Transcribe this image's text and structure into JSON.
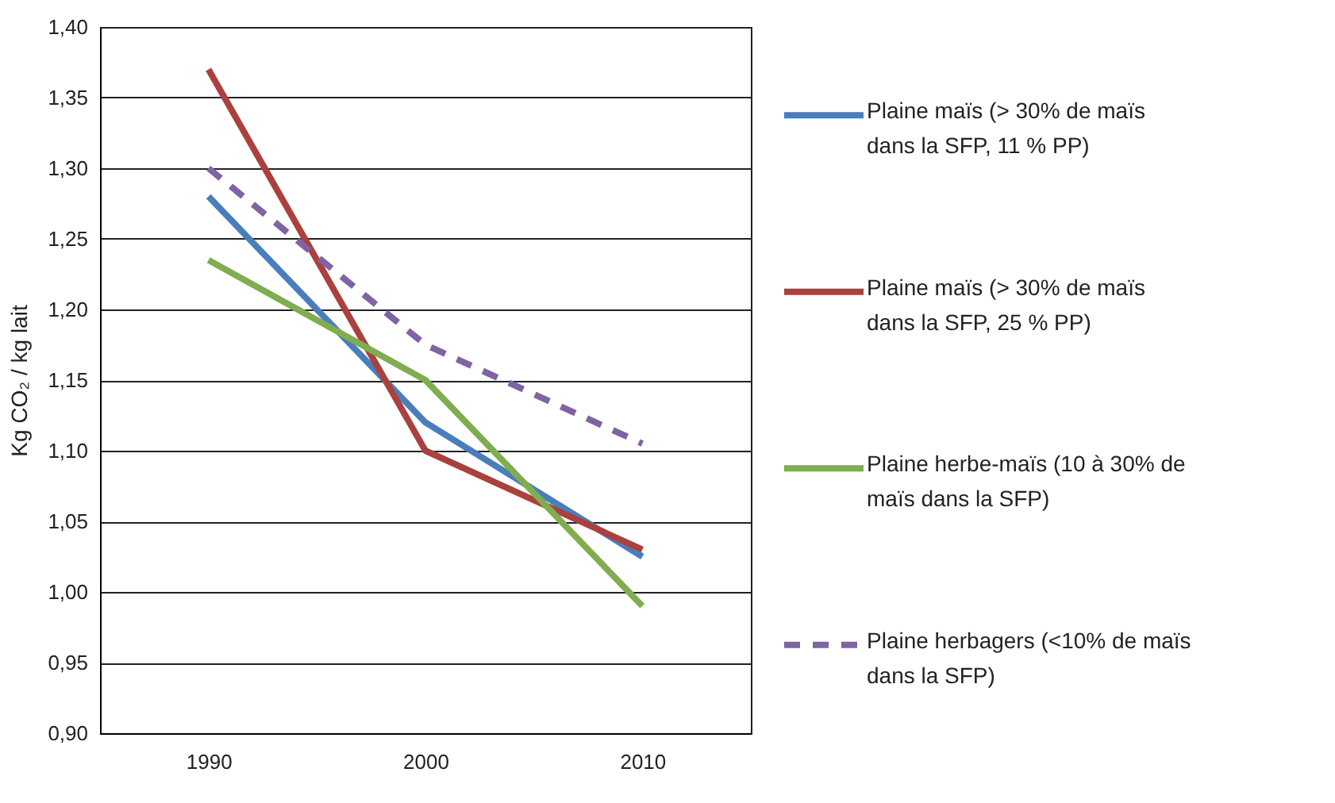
{
  "chart_data": {
    "type": "line",
    "ylabel": "Kg CO₂ / kg lait",
    "categories": [
      "1990",
      "2000",
      "2010"
    ],
    "series": [
      {
        "name": "Plaine maïs (> 30% de maïs dans la SFP, 11 % PP)",
        "color": "#4a7ebb",
        "values": [
          1.28,
          1.12,
          1.025
        ],
        "line_style": "solid"
      },
      {
        "name": "Plaine maïs (> 30% de maïs dans la SFP, 25 % PP)",
        "color": "#a9413e",
        "values": [
          1.37,
          1.1,
          1.03
        ],
        "line_style": "solid"
      },
      {
        "name": "Plaine herbe-maïs (10 à 30% de maïs dans la SFP)",
        "color": "#7fad4f",
        "values": [
          1.235,
          1.15,
          0.99
        ],
        "line_style": "solid"
      },
      {
        "name": "Plaine herbagers (<10% de maïs dans la SFP)",
        "color": "#7f63a3",
        "values": [
          1.3,
          1.175,
          1.105
        ],
        "line_style": "dashed"
      }
    ],
    "ylim": [
      0.9,
      1.4
    ],
    "yticks": [
      {
        "value": 0.9,
        "label": "0,90"
      },
      {
        "value": 0.95,
        "label": "0,95"
      },
      {
        "value": 1.0,
        "label": "1,00"
      },
      {
        "value": 1.05,
        "label": "1,05"
      },
      {
        "value": 1.1,
        "label": "1,10"
      },
      {
        "value": 1.15,
        "label": "1,15"
      },
      {
        "value": 1.2,
        "label": "1,20"
      },
      {
        "value": 1.25,
        "label": "1,25"
      },
      {
        "value": 1.3,
        "label": "1,30"
      },
      {
        "value": 1.35,
        "label": "1,35"
      },
      {
        "value": 1.4,
        "label": "1,40"
      }
    ],
    "grid": "y",
    "legend": "right",
    "marker": "none"
  }
}
